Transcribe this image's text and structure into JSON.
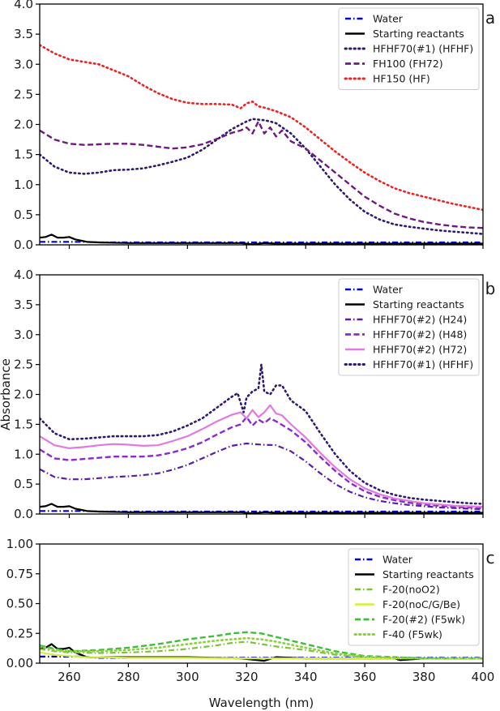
{
  "chart_data": [
    {
      "type": "line",
      "panel_label": "a",
      "xlabel": "",
      "ylabel": "",
      "xlim": [
        250,
        400
      ],
      "ylim": [
        0,
        4.0
      ],
      "yticks": [
        0.0,
        0.5,
        1.0,
        1.5,
        2.0,
        2.5,
        3.0,
        3.5,
        4.0
      ],
      "ytick_labels": [
        "0.0",
        "0.5",
        "1.0",
        "1.5",
        "2.0",
        "2.5",
        "3.0",
        "3.5",
        "4.0"
      ],
      "xticks": [
        260,
        280,
        300,
        320,
        340,
        360,
        380,
        400
      ],
      "show_xtick_labels": false,
      "legend": "top-right",
      "series": [
        {
          "name": "Water",
          "color": "#0000dd",
          "style": "dashdot",
          "x": [
            250,
            255,
            260,
            265,
            270,
            300,
            320,
            340,
            360,
            380,
            400
          ],
          "y": [
            0.05,
            0.05,
            0.05,
            0.05,
            0.04,
            0.04,
            0.04,
            0.04,
            0.04,
            0.04,
            0.04
          ]
        },
        {
          "name": "Starting reactants",
          "color": "#000000",
          "style": "solid",
          "x": [
            250,
            252,
            254,
            256,
            258,
            260,
            262,
            264,
            266,
            270,
            280,
            300,
            318,
            322,
            326,
            330,
            340,
            360,
            380,
            400
          ],
          "y": [
            0.12,
            0.13,
            0.17,
            0.12,
            0.12,
            0.13,
            0.09,
            0.07,
            0.05,
            0.04,
            0.03,
            0.03,
            0.03,
            0.01,
            0.03,
            0.02,
            0.02,
            0.02,
            0.02,
            0.02
          ]
        },
        {
          "name": "HFHF70(#1) (HFHF)",
          "color": "#2e1a6e",
          "style": "dotted",
          "x": [
            250,
            255,
            260,
            265,
            270,
            275,
            280,
            285,
            290,
            295,
            300,
            305,
            310,
            315,
            318,
            320,
            322,
            324,
            326,
            328,
            330,
            335,
            340,
            345,
            350,
            355,
            360,
            365,
            370,
            375,
            380,
            385,
            390,
            395,
            400
          ],
          "y": [
            1.5,
            1.3,
            1.2,
            1.18,
            1.2,
            1.24,
            1.25,
            1.27,
            1.32,
            1.38,
            1.45,
            1.58,
            1.75,
            1.92,
            2.0,
            2.05,
            2.09,
            2.08,
            2.07,
            2.05,
            2.02,
            1.85,
            1.6,
            1.3,
            1.0,
            0.75,
            0.55,
            0.42,
            0.34,
            0.3,
            0.27,
            0.24,
            0.22,
            0.2,
            0.18
          ]
        },
        {
          "name": "FH100 (FH72)",
          "color": "#6e1a7e",
          "style": "dashed",
          "x": [
            250,
            255,
            260,
            265,
            270,
            275,
            280,
            285,
            290,
            295,
            300,
            305,
            310,
            315,
            318,
            320,
            322,
            324,
            326,
            328,
            330,
            332,
            335,
            340,
            345,
            350,
            355,
            360,
            365,
            370,
            375,
            380,
            385,
            390,
            395,
            400
          ],
          "y": [
            1.9,
            1.75,
            1.68,
            1.66,
            1.67,
            1.68,
            1.68,
            1.66,
            1.63,
            1.6,
            1.62,
            1.67,
            1.76,
            1.86,
            1.9,
            1.95,
            1.85,
            2.05,
            1.85,
            1.95,
            1.8,
            1.9,
            1.72,
            1.6,
            1.4,
            1.2,
            1.0,
            0.8,
            0.65,
            0.52,
            0.44,
            0.38,
            0.34,
            0.31,
            0.29,
            0.28
          ]
        },
        {
          "name": "HF150 (HF)",
          "color": "#ee2222",
          "style": "dotted",
          "x": [
            250,
            255,
            260,
            265,
            270,
            275,
            280,
            285,
            290,
            295,
            300,
            305,
            310,
            315,
            318,
            320,
            322,
            324,
            326,
            328,
            330,
            335,
            340,
            345,
            350,
            355,
            360,
            365,
            370,
            375,
            380,
            385,
            390,
            395,
            400
          ],
          "y": [
            3.32,
            3.18,
            3.08,
            3.04,
            3.0,
            2.9,
            2.8,
            2.65,
            2.52,
            2.42,
            2.36,
            2.34,
            2.34,
            2.33,
            2.27,
            2.35,
            2.38,
            2.3,
            2.28,
            2.25,
            2.22,
            2.12,
            1.95,
            1.75,
            1.55,
            1.37,
            1.2,
            1.06,
            0.94,
            0.86,
            0.8,
            0.74,
            0.68,
            0.63,
            0.58
          ]
        }
      ]
    },
    {
      "type": "line",
      "panel_label": "b",
      "xlabel": "",
      "ylabel": "Absorbance",
      "xlim": [
        250,
        400
      ],
      "ylim": [
        0,
        4.0
      ],
      "yticks": [
        0.0,
        0.5,
        1.0,
        1.5,
        2.0,
        2.5,
        3.0,
        3.5,
        4.0
      ],
      "ytick_labels": [
        "0.0",
        "0.5",
        "1.0",
        "1.5",
        "2.0",
        "2.5",
        "3.0",
        "3.5",
        "4.0"
      ],
      "xticks": [
        260,
        280,
        300,
        320,
        340,
        360,
        380,
        400
      ],
      "show_xtick_labels": false,
      "legend": "top-right",
      "series": [
        {
          "name": "Water",
          "color": "#0000dd",
          "style": "dashdot",
          "x": [
            250,
            255,
            260,
            265,
            270,
            300,
            320,
            340,
            360,
            380,
            400
          ],
          "y": [
            0.05,
            0.05,
            0.05,
            0.05,
            0.04,
            0.04,
            0.04,
            0.04,
            0.04,
            0.04,
            0.04
          ]
        },
        {
          "name": "Starting reactants",
          "color": "#000000",
          "style": "solid",
          "x": [
            250,
            252,
            254,
            256,
            258,
            260,
            262,
            264,
            266,
            270,
            280,
            300,
            318,
            322,
            326,
            330,
            340,
            360,
            380,
            400
          ],
          "y": [
            0.12,
            0.13,
            0.17,
            0.12,
            0.12,
            0.13,
            0.09,
            0.07,
            0.05,
            0.04,
            0.03,
            0.03,
            0.03,
            0.01,
            0.03,
            0.02,
            0.02,
            0.02,
            0.02,
            0.02
          ]
        },
        {
          "name": "HFHF70(#2) (H24)",
          "color": "#5a1ea8",
          "style": "dashdot",
          "x": [
            250,
            255,
            260,
            265,
            270,
            275,
            280,
            285,
            290,
            295,
            300,
            305,
            310,
            315,
            320,
            325,
            330,
            335,
            340,
            345,
            350,
            355,
            360,
            365,
            370,
            375,
            380,
            385,
            390,
            395,
            400
          ],
          "y": [
            0.75,
            0.62,
            0.58,
            0.58,
            0.6,
            0.62,
            0.63,
            0.65,
            0.68,
            0.74,
            0.82,
            0.93,
            1.04,
            1.14,
            1.18,
            1.16,
            1.15,
            1.05,
            0.88,
            0.68,
            0.5,
            0.37,
            0.28,
            0.22,
            0.18,
            0.15,
            0.13,
            0.11,
            0.1,
            0.09,
            0.08
          ]
        },
        {
          "name": "HFHF70(#2) (H48)",
          "color": "#8a2ad0",
          "style": "dashed",
          "x": [
            250,
            255,
            260,
            265,
            270,
            275,
            280,
            285,
            290,
            295,
            300,
            305,
            310,
            315,
            318,
            320,
            322,
            324,
            326,
            328,
            330,
            335,
            340,
            345,
            350,
            355,
            360,
            365,
            370,
            375,
            380,
            385,
            390,
            395,
            400
          ],
          "y": [
            1.08,
            0.93,
            0.9,
            0.92,
            0.94,
            0.96,
            0.96,
            0.96,
            0.98,
            1.03,
            1.1,
            1.2,
            1.33,
            1.45,
            1.5,
            1.62,
            1.48,
            1.58,
            1.52,
            1.6,
            1.55,
            1.4,
            1.2,
            0.95,
            0.72,
            0.52,
            0.38,
            0.29,
            0.23,
            0.19,
            0.16,
            0.14,
            0.12,
            0.11,
            0.1
          ]
        },
        {
          "name": "HFHF70(#2) (H72)",
          "color": "#e07ae0",
          "style": "solid",
          "x": [
            250,
            255,
            260,
            265,
            270,
            275,
            280,
            285,
            290,
            295,
            300,
            305,
            310,
            315,
            318,
            320,
            322,
            324,
            326,
            328,
            330,
            332,
            335,
            340,
            345,
            350,
            355,
            360,
            365,
            370,
            375,
            380,
            385,
            390,
            395,
            400
          ],
          "y": [
            1.3,
            1.15,
            1.1,
            1.12,
            1.15,
            1.17,
            1.16,
            1.14,
            1.15,
            1.22,
            1.3,
            1.42,
            1.55,
            1.66,
            1.7,
            1.6,
            1.74,
            1.62,
            1.7,
            1.82,
            1.68,
            1.65,
            1.5,
            1.28,
            1.02,
            0.78,
            0.58,
            0.43,
            0.33,
            0.26,
            0.22,
            0.18,
            0.16,
            0.14,
            0.13,
            0.12
          ]
        },
        {
          "name": "HFHF70(#1) (HFHF)",
          "color": "#2e1a6e",
          "style": "dotted",
          "x": [
            250,
            255,
            260,
            265,
            270,
            275,
            280,
            285,
            290,
            295,
            300,
            305,
            310,
            315,
            317,
            319,
            320,
            322,
            324,
            325,
            326,
            328,
            330,
            332,
            335,
            340,
            345,
            350,
            355,
            360,
            365,
            370,
            375,
            380,
            385,
            390,
            395,
            400
          ],
          "y": [
            1.6,
            1.35,
            1.25,
            1.26,
            1.28,
            1.3,
            1.3,
            1.3,
            1.32,
            1.38,
            1.48,
            1.6,
            1.78,
            1.96,
            2.02,
            1.7,
            1.95,
            2.05,
            2.1,
            2.5,
            2.05,
            2.0,
            2.15,
            2.15,
            1.9,
            1.72,
            1.35,
            1.0,
            0.72,
            0.52,
            0.4,
            0.32,
            0.27,
            0.24,
            0.22,
            0.2,
            0.18,
            0.17
          ]
        }
      ]
    },
    {
      "type": "line",
      "panel_label": "c",
      "xlabel": "Wavelength (nm)",
      "ylabel": "",
      "xlim": [
        250,
        400
      ],
      "ylim": [
        0,
        1.0
      ],
      "yticks": [
        0.0,
        0.25,
        0.5,
        0.75,
        1.0
      ],
      "ytick_labels": [
        "0.00",
        "0.25",
        "0.50",
        "0.75",
        "1.00"
      ],
      "xticks": [
        260,
        280,
        300,
        320,
        340,
        360,
        380,
        400
      ],
      "xtick_labels": [
        "260",
        "280",
        "300",
        "320",
        "340",
        "360",
        "380",
        "400"
      ],
      "show_xtick_labels": true,
      "legend": "top-right",
      "series": [
        {
          "name": "Water",
          "color": "#0000dd",
          "style": "dashdot",
          "x": [
            250,
            255,
            260,
            265,
            270,
            300,
            320,
            340,
            360,
            380,
            400
          ],
          "y": [
            0.055,
            0.055,
            0.055,
            0.055,
            0.045,
            0.045,
            0.045,
            0.045,
            0.045,
            0.045,
            0.045
          ]
        },
        {
          "name": "Starting reactants",
          "color": "#000000",
          "style": "solid",
          "x": [
            250,
            252,
            254,
            256,
            258,
            260,
            262,
            264,
            266,
            270,
            280,
            300,
            318,
            322,
            326,
            330,
            340,
            350,
            360,
            370,
            372,
            380,
            400
          ],
          "y": [
            0.12,
            0.13,
            0.16,
            0.12,
            0.12,
            0.13,
            0.09,
            0.07,
            0.05,
            0.05,
            0.05,
            0.05,
            0.04,
            0.03,
            0.02,
            0.05,
            0.04,
            0.04,
            0.04,
            0.04,
            0.025,
            0.04,
            0.04
          ]
        },
        {
          "name": "F-20(noO2)",
          "color": "#7cc43a",
          "style": "dashdot",
          "x": [
            250,
            255,
            260,
            270,
            280,
            290,
            300,
            310,
            315,
            320,
            325,
            330,
            340,
            350,
            360,
            370,
            380,
            390,
            400
          ],
          "y": [
            0.12,
            0.1,
            0.09,
            0.085,
            0.09,
            0.1,
            0.12,
            0.15,
            0.17,
            0.18,
            0.16,
            0.14,
            0.11,
            0.07,
            0.05,
            0.04,
            0.04,
            0.04,
            0.04
          ]
        },
        {
          "name": "F-20(noC/G/Be)",
          "color": "#d4f03a",
          "style": "solid",
          "x": [
            250,
            255,
            260,
            265,
            270,
            280,
            300,
            320,
            340,
            360,
            380,
            400
          ],
          "y": [
            0.09,
            0.07,
            0.06,
            0.05,
            0.05,
            0.045,
            0.045,
            0.04,
            0.04,
            0.04,
            0.04,
            0.04
          ]
        },
        {
          "name": "F-20(#2) (F5wk)",
          "color": "#3cbf3c",
          "style": "dashed",
          "x": [
            250,
            255,
            260,
            270,
            280,
            290,
            300,
            310,
            315,
            320,
            325,
            330,
            340,
            350,
            360,
            370,
            380,
            390,
            400
          ],
          "y": [
            0.15,
            0.12,
            0.1,
            0.11,
            0.13,
            0.16,
            0.2,
            0.23,
            0.25,
            0.26,
            0.25,
            0.22,
            0.16,
            0.1,
            0.06,
            0.05,
            0.04,
            0.04,
            0.04
          ]
        },
        {
          "name": "F-40 (F5wk)",
          "color": "#8ed03a",
          "style": "dotted",
          "x": [
            250,
            255,
            260,
            270,
            280,
            290,
            300,
            310,
            315,
            320,
            325,
            330,
            340,
            350,
            360,
            370,
            380,
            390,
            400
          ],
          "y": [
            0.14,
            0.11,
            0.1,
            0.1,
            0.11,
            0.13,
            0.16,
            0.19,
            0.2,
            0.21,
            0.2,
            0.18,
            0.13,
            0.08,
            0.055,
            0.045,
            0.04,
            0.04,
            0.04
          ]
        }
      ]
    }
  ]
}
